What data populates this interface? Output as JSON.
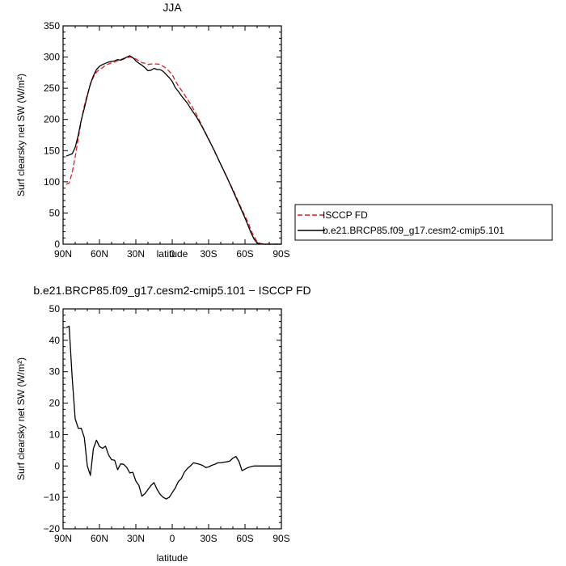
{
  "chart_data": [
    {
      "type": "line",
      "title": "JJA",
      "xlabel": "latitude",
      "ylabel": "Surf clearsky net SW (W/m²)",
      "xlim": [
        90,
        -90
      ],
      "ylim": [
        0,
        350
      ],
      "x_ticks": [
        90,
        60,
        30,
        0,
        -30,
        -60,
        -90
      ],
      "x_tick_labels": [
        "90N",
        "60N",
        "30N",
        "0",
        "30S",
        "60S",
        "90S"
      ],
      "y_ticks": [
        0,
        50,
        100,
        150,
        200,
        250,
        300,
        350
      ],
      "legend_position": "right",
      "series": [
        {
          "name": "ISCCP FD",
          "color": "#e41a1c",
          "dash": "dashed",
          "x": [
            87.5,
            85,
            82.5,
            80,
            77.5,
            75,
            72.5,
            70,
            67.5,
            65,
            62.5,
            60,
            57.5,
            55,
            52.5,
            50,
            47.5,
            45,
            42.5,
            40,
            37.5,
            35,
            32.5,
            30,
            27.5,
            25,
            22.5,
            20,
            17.5,
            15,
            12.5,
            10,
            7.5,
            5,
            2.5,
            0,
            -2.5,
            -5,
            -7.5,
            -10,
            -12.5,
            -15,
            -20,
            -25,
            -30,
            -35,
            -40,
            -45,
            -50,
            -55,
            -60,
            -62.5,
            -65,
            -67.5,
            -70,
            -72.5,
            -75,
            -77.5,
            -80,
            -85,
            -90
          ],
          "values": [
            96,
            98,
            115,
            140,
            170,
            198,
            222,
            240,
            256,
            268,
            276,
            280,
            283,
            287,
            289,
            291,
            292,
            294,
            296,
            298,
            299,
            300,
            299,
            297,
            294,
            291,
            290,
            288,
            289,
            289,
            289,
            288,
            285,
            282,
            277,
            272,
            262,
            254,
            247,
            240,
            232,
            225,
            208,
            188,
            169,
            148,
            128,
            107,
            88,
            66,
            45,
            35,
            22,
            12,
            4,
            1,
            0.5,
            0,
            0,
            0,
            0
          ]
        },
        {
          "name": "b.e21.BRCP85.f09_g17.cesm2-cmip5.101",
          "color": "#000000",
          "dash": "solid",
          "x": [
            87.5,
            85,
            82.5,
            80,
            77.5,
            75,
            72.5,
            70,
            67.5,
            65,
            62.5,
            60,
            57.5,
            55,
            52.5,
            50,
            47.5,
            45,
            42.5,
            40,
            37.5,
            35,
            32.5,
            30,
            27.5,
            25,
            22.5,
            20,
            17.5,
            15,
            12.5,
            10,
            7.5,
            5,
            2.5,
            0,
            -2.5,
            -5,
            -7.5,
            -10,
            -12.5,
            -15,
            -20,
            -25,
            -30,
            -35,
            -40,
            -45,
            -50,
            -55,
            -60,
            -62.5,
            -65,
            -67.5,
            -70,
            -72.5,
            -75,
            -77.5,
            -80,
            -85,
            -90
          ],
          "values": [
            141,
            143,
            145,
            155,
            175,
            199,
            218,
            238,
            257,
            270,
            280,
            285,
            288,
            290,
            292,
            293,
            294,
            296,
            295,
            297,
            300,
            302,
            299,
            294,
            290,
            287,
            283,
            278,
            279,
            282,
            280,
            280,
            277,
            272,
            267,
            261,
            251,
            245,
            238,
            232,
            226,
            218,
            204,
            187,
            168,
            149,
            128,
            108,
            86,
            64,
            42,
            30,
            18,
            8,
            2,
            0.5,
            0,
            0,
            0,
            0,
            0
          ]
        }
      ]
    },
    {
      "type": "line",
      "title": "b.e21.BRCP85.f09_g17.cesm2-cmip5.101 − ISCCP FD",
      "xlabel": "latitude",
      "ylabel": "Surf clearsky net SW (W/m²)",
      "xlim": [
        90,
        -90
      ],
      "ylim": [
        -20,
        50
      ],
      "x_ticks": [
        90,
        60,
        30,
        0,
        -30,
        -60,
        -90
      ],
      "x_tick_labels": [
        "90N",
        "60N",
        "30N",
        "0",
        "30S",
        "60S",
        "90S"
      ],
      "y_ticks": [
        -20,
        -10,
        0,
        10,
        20,
        30,
        40,
        50
      ],
      "series": [
        {
          "color": "#000000",
          "dash": "solid",
          "x": [
            87.5,
            85,
            82.5,
            80,
            77.5,
            75,
            72.5,
            70,
            67.5,
            65,
            62.5,
            60,
            57.5,
            55,
            52.5,
            50,
            47.5,
            45,
            42.5,
            40,
            37.5,
            35,
            32.5,
            30,
            27.5,
            25,
            22.5,
            20,
            17.5,
            15,
            12.5,
            10,
            7.5,
            5,
            2.5,
            0,
            -2.5,
            -5,
            -7.5,
            -10,
            -12.5,
            -15,
            -17.5,
            -20,
            -22.5,
            -25,
            -27.5,
            -30,
            -32.5,
            -35,
            -37.5,
            -40,
            -42.5,
            -45,
            -47.5,
            -50,
            -52.5,
            -55,
            -57.5,
            -60,
            -62.5,
            -65,
            -67.5,
            -70,
            -75,
            -80,
            -85,
            -90
          ],
          "values": [
            44,
            44.5,
            28,
            15,
            12,
            12,
            9,
            0,
            -3,
            5.5,
            8.2,
            6.2,
            5.6,
            6.3,
            3.5,
            2,
            1.8,
            -1.2,
            0.7,
            0.5,
            -0.5,
            -2.2,
            -2.0,
            -4.8,
            -6.2,
            -9.6,
            -8.8,
            -7.5,
            -6.2,
            -5.3,
            -7.5,
            -9.0,
            -10.0,
            -10.5,
            -10.0,
            -8.5,
            -7.0,
            -5.0,
            -4.0,
            -2.0,
            -0.8,
            0.0,
            1.0,
            0.8,
            0.5,
            0.2,
            -0.5,
            -0.3,
            0.2,
            0.5,
            1.0,
            1.0,
            1.2,
            1.3,
            1.6,
            2.5,
            3.0,
            1.5,
            -1.5,
            -1.0,
            -0.5,
            -0.2,
            0,
            0,
            0,
            0,
            0,
            0
          ]
        }
      ]
    }
  ]
}
